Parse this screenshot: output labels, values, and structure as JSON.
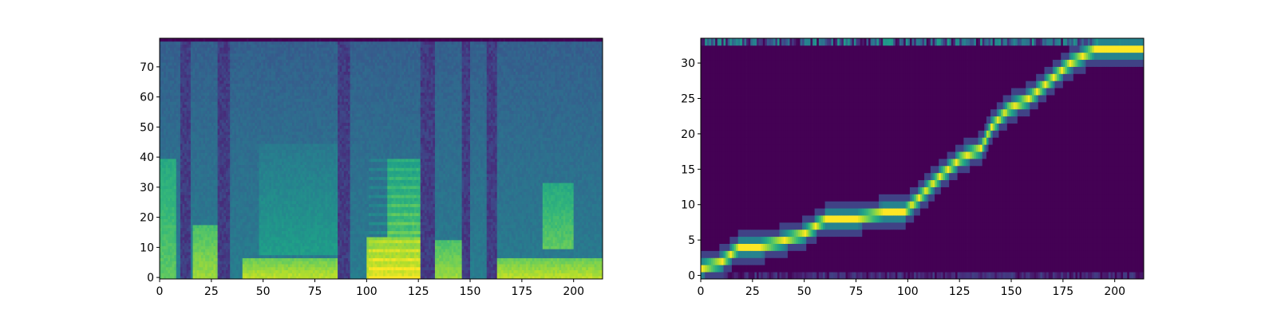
{
  "colormap": "viridis",
  "colormap_stops": [
    "#440154",
    "#482878",
    "#3e4989",
    "#31688e",
    "#26828e",
    "#1f9e89",
    "#35b779",
    "#6ece58",
    "#b5de2b",
    "#fde725"
  ],
  "axis_color": "#000000",
  "chart_data": [
    {
      "type": "heatmap",
      "title": "",
      "xlabel": "",
      "ylabel": "",
      "n_cols": 214,
      "n_rows": 80,
      "xlim": [
        0,
        214
      ],
      "ylim": [
        -0.5,
        79.5
      ],
      "xticks": [
        0,
        25,
        50,
        75,
        100,
        125,
        150,
        175,
        200
      ],
      "yticks": [
        0,
        10,
        20,
        30,
        40,
        50,
        60,
        70
      ],
      "xtick_labels": [
        "0",
        "25",
        "50",
        "75",
        "100",
        "125",
        "150",
        "175",
        "200"
      ],
      "ytick_labels": [
        "0",
        "10",
        "20",
        "30",
        "40",
        "50",
        "60",
        "70"
      ],
      "description_of_content": "mel spectrogram",
      "silence_columns": [
        [
          10,
          15
        ],
        [
          28,
          34
        ],
        [
          86,
          92
        ],
        [
          126,
          133
        ],
        [
          146,
          150
        ],
        [
          158,
          163
        ]
      ],
      "formant_bands": [
        {
          "x": [
            0,
            8
          ],
          "y": [
            0,
            40
          ],
          "value": 0.75
        },
        {
          "x": [
            16,
            28
          ],
          "y": [
            0,
            18
          ],
          "value": 0.85
        },
        {
          "x": [
            40,
            86
          ],
          "y": [
            0,
            7
          ],
          "value": 0.9
        },
        {
          "x": [
            48,
            86
          ],
          "y": [
            8,
            45
          ],
          "value": 0.55
        },
        {
          "x": [
            100,
            126
          ],
          "y": [
            0,
            14
          ],
          "value": 0.95
        },
        {
          "x": [
            110,
            126
          ],
          "y": [
            14,
            40
          ],
          "value": 0.7
        },
        {
          "x": [
            133,
            146
          ],
          "y": [
            0,
            13
          ],
          "value": 0.85
        },
        {
          "x": [
            163,
            214
          ],
          "y": [
            0,
            7
          ],
          "value": 0.9
        },
        {
          "x": [
            185,
            200
          ],
          "y": [
            10,
            32
          ],
          "value": 0.75
        }
      ]
    },
    {
      "type": "heatmap",
      "title": "",
      "xlabel": "",
      "ylabel": "",
      "n_cols": 214,
      "n_rows": 34,
      "xlim": [
        0,
        214
      ],
      "ylim": [
        -0.5,
        33.5
      ],
      "xticks": [
        0,
        25,
        50,
        75,
        100,
        125,
        150,
        175,
        200
      ],
      "yticks": [
        0,
        5,
        10,
        15,
        20,
        25,
        30
      ],
      "xtick_labels": [
        "0",
        "25",
        "50",
        "75",
        "100",
        "125",
        "150",
        "175",
        "200"
      ],
      "ytick_labels": [
        "0",
        "5",
        "10",
        "15",
        "20",
        "25",
        "30"
      ],
      "description_of_content": "attention alignment",
      "alignment_path": [
        {
          "x": 0,
          "y": 1
        },
        {
          "x": 10,
          "y": 2
        },
        {
          "x": 18,
          "y": 4
        },
        {
          "x": 28,
          "y": 4
        },
        {
          "x": 40,
          "y": 5
        },
        {
          "x": 50,
          "y": 6
        },
        {
          "x": 60,
          "y": 8
        },
        {
          "x": 75,
          "y": 8
        },
        {
          "x": 88,
          "y": 9
        },
        {
          "x": 98,
          "y": 9
        },
        {
          "x": 105,
          "y": 11
        },
        {
          "x": 115,
          "y": 14
        },
        {
          "x": 125,
          "y": 16.5
        },
        {
          "x": 135,
          "y": 18
        },
        {
          "x": 140,
          "y": 21
        },
        {
          "x": 148,
          "y": 23.5
        },
        {
          "x": 158,
          "y": 25
        },
        {
          "x": 168,
          "y": 27.5
        },
        {
          "x": 178,
          "y": 30
        },
        {
          "x": 190,
          "y": 32
        },
        {
          "x": 214,
          "y": 32
        }
      ],
      "top_row_value": 0.35,
      "bottom_row_value": 0.2
    }
  ]
}
